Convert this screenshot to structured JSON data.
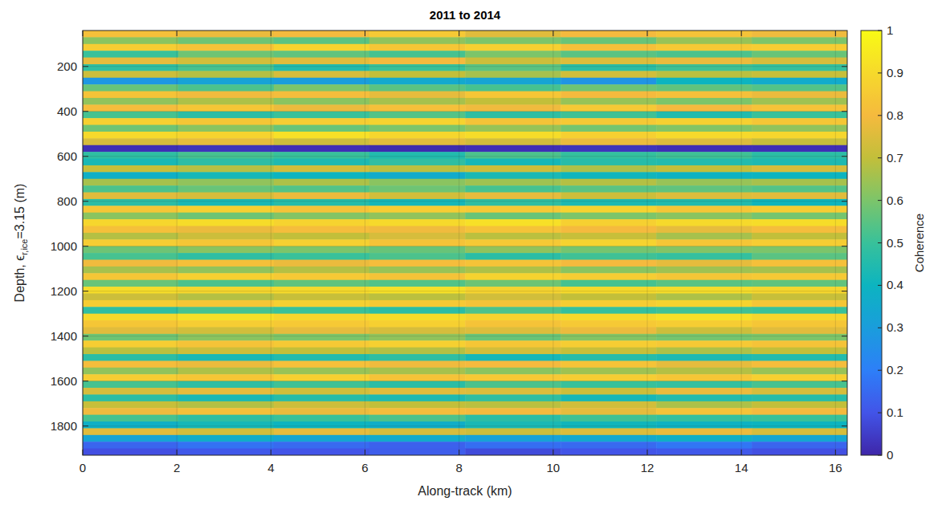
{
  "chart_data": {
    "type": "heatmap",
    "title": "2011 to 2014",
    "x_label": "Along-track (km)",
    "y_label": {
      "text": "Depth, ϵ",
      "subscript": "r,ice",
      "suffix": "=3.15 (m)"
    },
    "xlim": [
      0,
      16.25
    ],
    "xticks": [
      0,
      2,
      4,
      6,
      8,
      10,
      12,
      14,
      16
    ],
    "ylim": [
      40,
      1930
    ],
    "yticks": [
      200,
      400,
      600,
      800,
      1000,
      1200,
      1400,
      1600,
      1800
    ],
    "grid": true,
    "x_edges": [
      0,
      2.03,
      4.06,
      6.09,
      8.13,
      10.16,
      12.19,
      14.22,
      16.25
    ],
    "y_edges": [
      40,
      70,
      100,
      130,
      160,
      190,
      220,
      250,
      280,
      310,
      340,
      370,
      400,
      430,
      460,
      490,
      520,
      550,
      580,
      610,
      640,
      670,
      700,
      730,
      760,
      790,
      820,
      850,
      880,
      910,
      940,
      970,
      1000,
      1030,
      1060,
      1090,
      1120,
      1150,
      1180,
      1210,
      1240,
      1270,
      1300,
      1330,
      1360,
      1390,
      1420,
      1450,
      1480,
      1510,
      1540,
      1570,
      1600,
      1630,
      1660,
      1690,
      1720,
      1750,
      1780,
      1810,
      1840,
      1870,
      1900,
      1930
    ],
    "cells": [
      [
        0.82,
        0.78,
        0.8,
        0.85,
        0.76,
        0.8,
        0.83,
        0.79
      ],
      [
        0.62,
        0.58,
        0.55,
        0.63,
        0.6,
        0.57,
        0.64,
        0.6
      ],
      [
        0.86,
        0.83,
        0.88,
        0.84,
        0.87,
        0.82,
        0.85,
        0.86
      ],
      [
        0.5,
        0.58,
        0.56,
        0.52,
        0.6,
        0.55,
        0.53,
        0.57
      ],
      [
        0.77,
        0.73,
        0.76,
        0.8,
        0.72,
        0.75,
        0.78,
        0.74
      ],
      [
        0.48,
        0.52,
        0.45,
        0.5,
        0.55,
        0.47,
        0.51,
        0.49
      ],
      [
        0.72,
        0.68,
        0.74,
        0.7,
        0.66,
        0.73,
        0.69,
        0.71
      ],
      [
        0.28,
        0.32,
        0.3,
        0.35,
        0.33,
        0.27,
        0.4,
        0.36
      ],
      [
        0.57,
        0.53,
        0.6,
        0.55,
        0.52,
        0.58,
        0.56,
        0.54
      ],
      [
        0.83,
        0.79,
        0.81,
        0.77,
        0.84,
        0.8,
        0.82,
        0.78
      ],
      [
        0.63,
        0.67,
        0.62,
        0.66,
        0.7,
        0.64,
        0.6,
        0.65
      ],
      [
        0.81,
        0.84,
        0.78,
        0.82,
        0.79,
        0.85,
        0.8,
        0.83
      ],
      [
        0.52,
        0.47,
        0.5,
        0.54,
        0.48,
        0.51,
        0.45,
        0.5
      ],
      [
        0.87,
        0.84,
        0.86,
        0.88,
        0.83,
        0.85,
        0.87,
        0.84
      ],
      [
        0.58,
        0.62,
        0.57,
        0.6,
        0.64,
        0.59,
        0.61,
        0.63
      ],
      [
        0.9,
        0.88,
        0.92,
        0.89,
        0.91,
        0.87,
        0.9,
        0.89
      ],
      [
        0.74,
        0.77,
        0.72,
        0.76,
        0.73,
        0.78,
        0.75,
        0.71
      ],
      [
        0.02,
        0.03,
        0.02,
        0.01,
        0.02,
        0.03,
        0.02,
        0.02
      ],
      [
        0.48,
        0.52,
        0.5,
        0.45,
        0.53,
        0.49,
        0.51,
        0.47
      ],
      [
        0.43,
        0.47,
        0.44,
        0.48,
        0.42,
        0.46,
        0.45,
        0.44
      ],
      [
        0.71,
        0.68,
        0.73,
        0.69,
        0.72,
        0.67,
        0.7,
        0.74
      ],
      [
        0.38,
        0.42,
        0.4,
        0.36,
        0.43,
        0.41,
        0.39,
        0.4
      ],
      [
        0.66,
        0.63,
        0.67,
        0.62,
        0.65,
        0.68,
        0.64,
        0.66
      ],
      [
        0.53,
        0.57,
        0.54,
        0.58,
        0.52,
        0.55,
        0.56,
        0.54
      ],
      [
        0.76,
        0.74,
        0.78,
        0.73,
        0.77,
        0.72,
        0.75,
        0.76
      ],
      [
        0.47,
        0.43,
        0.46,
        0.42,
        0.48,
        0.44,
        0.45,
        0.41
      ],
      [
        0.84,
        0.87,
        0.83,
        0.86,
        0.85,
        0.88,
        0.84,
        0.86
      ],
      [
        0.62,
        0.58,
        0.61,
        0.63,
        0.57,
        0.6,
        0.62,
        0.59
      ],
      [
        0.89,
        0.91,
        0.88,
        0.9,
        0.92,
        0.87,
        0.9,
        0.91
      ],
      [
        0.82,
        0.78,
        0.81,
        0.79,
        0.83,
        0.8,
        0.77,
        0.81
      ],
      [
        0.68,
        0.72,
        0.7,
        0.74,
        0.69,
        0.71,
        0.66,
        0.7
      ],
      [
        0.86,
        0.84,
        0.87,
        0.83,
        0.85,
        0.88,
        0.84,
        0.86
      ],
      [
        0.58,
        0.62,
        0.6,
        0.57,
        0.63,
        0.59,
        0.61,
        0.6
      ],
      [
        0.52,
        0.48,
        0.5,
        0.53,
        0.47,
        0.51,
        0.49,
        0.55
      ],
      [
        0.79,
        0.82,
        0.78,
        0.81,
        0.83,
        0.8,
        0.77,
        0.82
      ],
      [
        0.66,
        0.63,
        0.68,
        0.64,
        0.67,
        0.62,
        0.65,
        0.66
      ],
      [
        0.84,
        0.87,
        0.85,
        0.83,
        0.88,
        0.86,
        0.84,
        0.85
      ],
      [
        0.57,
        0.53,
        0.56,
        0.54,
        0.58,
        0.52,
        0.55,
        0.56
      ],
      [
        0.91,
        0.89,
        0.9,
        0.92,
        0.88,
        0.9,
        0.91,
        0.89
      ],
      [
        0.72,
        0.68,
        0.71,
        0.69,
        0.73,
        0.7,
        0.67,
        0.71
      ],
      [
        0.86,
        0.84,
        0.87,
        0.85,
        0.83,
        0.86,
        0.88,
        0.84
      ],
      [
        0.48,
        0.52,
        0.5,
        0.47,
        0.53,
        0.49,
        0.51,
        0.5
      ],
      [
        0.9,
        0.92,
        0.89,
        0.91,
        0.88,
        0.9,
        0.92,
        0.89
      ],
      [
        0.84,
        0.86,
        0.85,
        0.87,
        0.83,
        0.85,
        0.86,
        0.84
      ],
      [
        0.76,
        0.73,
        0.77,
        0.74,
        0.75,
        0.78,
        0.72,
        0.76
      ],
      [
        0.58,
        0.62,
        0.6,
        0.63,
        0.57,
        0.61,
        0.59,
        0.6
      ],
      [
        0.86,
        0.83,
        0.85,
        0.87,
        0.84,
        0.86,
        0.85,
        0.83
      ],
      [
        0.69,
        0.72,
        0.7,
        0.68,
        0.73,
        0.71,
        0.67,
        0.7
      ],
      [
        0.47,
        0.43,
        0.45,
        0.48,
        0.42,
        0.46,
        0.44,
        0.45
      ],
      [
        0.81,
        0.78,
        0.82,
        0.79,
        0.8,
        0.83,
        0.77,
        0.81
      ],
      [
        0.63,
        0.67,
        0.64,
        0.66,
        0.62,
        0.65,
        0.68,
        0.64
      ],
      [
        0.86,
        0.84,
        0.87,
        0.83,
        0.85,
        0.86,
        0.84,
        0.87
      ],
      [
        0.52,
        0.48,
        0.51,
        0.47,
        0.53,
        0.5,
        0.49,
        0.52
      ],
      [
        0.74,
        0.77,
        0.73,
        0.76,
        0.75,
        0.72,
        0.78,
        0.74
      ],
      [
        0.47,
        0.43,
        0.46,
        0.44,
        0.48,
        0.42,
        0.45,
        0.46
      ],
      [
        0.71,
        0.68,
        0.72,
        0.7,
        0.69,
        0.73,
        0.67,
        0.7
      ],
      [
        0.79,
        0.82,
        0.78,
        0.81,
        0.8,
        0.77,
        0.83,
        0.8
      ],
      [
        0.52,
        0.48,
        0.5,
        0.53,
        0.47,
        0.51,
        0.49,
        0.5
      ],
      [
        0.38,
        0.42,
        0.4,
        0.37,
        0.43,
        0.41,
        0.39,
        0.4
      ],
      [
        0.76,
        0.73,
        0.77,
        0.74,
        0.72,
        0.75,
        0.78,
        0.74
      ],
      [
        0.33,
        0.37,
        0.34,
        0.36,
        0.32,
        0.35,
        0.38,
        0.34
      ],
      [
        0.14,
        0.17,
        0.15,
        0.13,
        0.16,
        0.15,
        0.18,
        0.14
      ],
      [
        0.09,
        0.11,
        0.1,
        0.12,
        0.08,
        0.1,
        0.11,
        0.09
      ]
    ],
    "colorbar": {
      "label": "Coherence",
      "range": [
        0,
        1
      ],
      "ticks": [
        0,
        0.1,
        0.2,
        0.3,
        0.4,
        0.5,
        0.6,
        0.7,
        0.8,
        0.9,
        1
      ]
    }
  }
}
